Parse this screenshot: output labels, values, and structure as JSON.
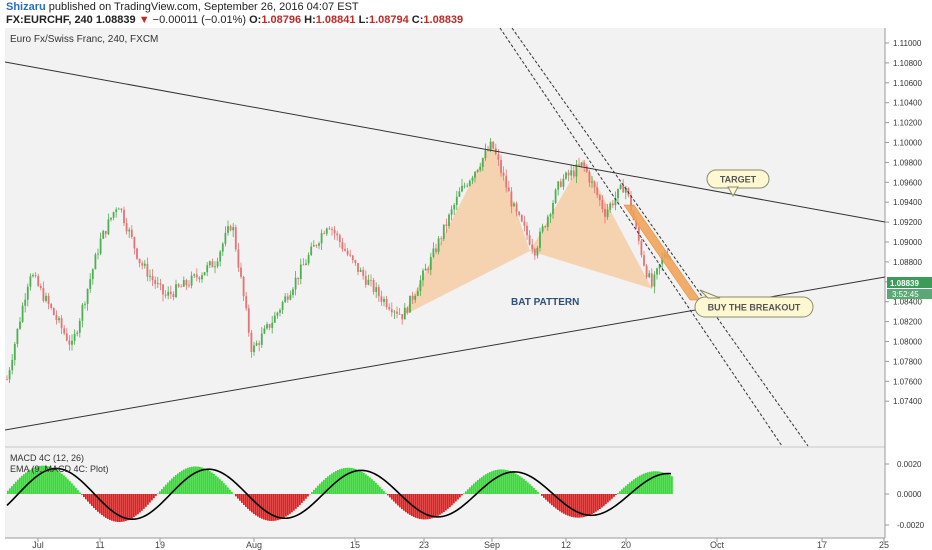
{
  "header": {
    "author": "Shizaru",
    "published_text": "published on TradingView.com, September 26, 2016 04:07 EST",
    "symbol": "FX:EURCHF, 240",
    "last": "1.08839",
    "change_arrow": "▼",
    "change": "−0.00011 (−0.01%)",
    "open_label": "O:",
    "open": "1.08796",
    "high_label": "H:",
    "high": "1.08841",
    "low_label": "L:",
    "low": "1.08794",
    "close_label": "C:",
    "close": "1.08839"
  },
  "chart_data": {
    "type": "candlestick",
    "instrument": "Euro Fx/Swiss Franc, 240, FXCM",
    "y_ticks": [
      "1.11000",
      "1.10800",
      "1.10600",
      "1.10400",
      "1.10200",
      "1.10000",
      "1.09800",
      "1.09600",
      "1.09400",
      "1.09200",
      "1.09000",
      "1.08800",
      "1.08600",
      "1.08400",
      "1.08200",
      "1.08000",
      "1.07800",
      "1.07600",
      "1.07400"
    ],
    "ylim": [
      1.073,
      1.112
    ],
    "x_ticks": [
      "Jul",
      "11",
      "19",
      "Aug",
      "15",
      "23",
      "Sep",
      "12",
      "20",
      "Oct",
      "17",
      "25"
    ],
    "price_label": "1.08839",
    "countdown_label": "3:52:45",
    "annotations": {
      "pattern": "BAT PATTERN",
      "target": "TARGET",
      "breakout": "BUY THE BREAKOUT"
    },
    "bat_pattern_points": [
      {
        "date": "Aug 22",
        "price": 1.0826
      },
      {
        "date": "Sep 1",
        "price": 1.1001
      },
      {
        "date": "Sep 7",
        "price": 1.0891
      },
      {
        "date": "Sep 14",
        "price": 1.0983
      },
      {
        "date": "Sep 21",
        "price": 1.0853
      }
    ],
    "macd": {
      "indicator_label": "MACD 4C (12, 26)",
      "signal_label": "EMA (9, MACD 4C: Plot)",
      "y_ticks": [
        "0.0020",
        "0.0000",
        "-0.0020"
      ],
      "ylim": [
        -0.0028,
        0.0028
      ]
    },
    "colors": {
      "up": "#4caf50",
      "down": "#e57373",
      "pattern": "#f5c89a",
      "macd_pos": "#33dd33",
      "macd_neg": "#e02020",
      "price_tag": "#3d9b5a"
    }
  }
}
